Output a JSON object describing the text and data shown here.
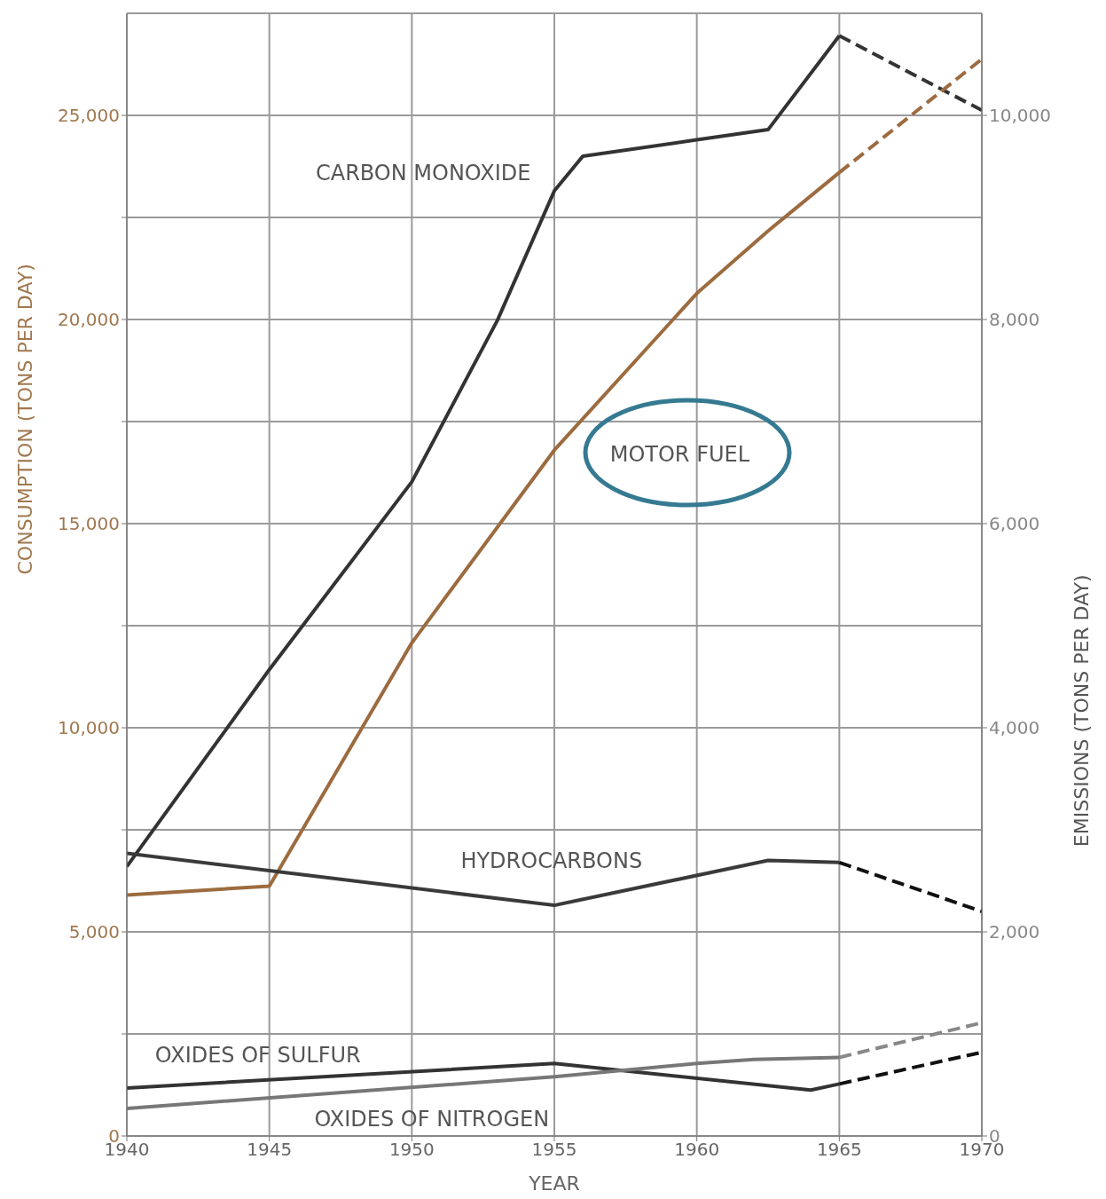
{
  "chart_data": {
    "type": "line",
    "xlabel": "YEAR",
    "ylabel": "CONSUMPTION (TONS PER DAY)",
    "y2label": "EMISSIONS (TONS PER DAY)",
    "xlim": [
      1940,
      1970
    ],
    "xticks": [
      1940,
      1945,
      1950,
      1955,
      1960,
      1965,
      1970
    ],
    "ylim": [
      0,
      27500
    ],
    "yticks": [
      0,
      {
        "value": 2500,
        "label": null
      },
      {
        "value": 5000,
        "label": "5,000"
      },
      {
        "value": 7500,
        "label": null
      },
      {
        "value": 10000,
        "label": "10,000"
      },
      {
        "value": 12500,
        "label": null
      },
      {
        "value": 15000,
        "label": "15,000"
      },
      {
        "value": 17500,
        "label": null
      },
      {
        "value": 20000,
        "label": "20,000"
      },
      {
        "value": 22500,
        "label": null
      },
      {
        "value": 25000,
        "label": "25,000"
      }
    ],
    "y2lim": [
      0,
      11000
    ],
    "y2ticks": [
      0,
      {
        "value": 2000,
        "label": "2,000"
      },
      {
        "value": 4000,
        "label": "4,000"
      },
      {
        "value": 6000,
        "label": "6,000"
      },
      {
        "value": 8000,
        "label": "8,000"
      },
      {
        "value": 10000,
        "label": "10,000"
      }
    ],
    "grid": true,
    "marker": "none",
    "series": [
      {
        "name": "CARBON MONOXIDE",
        "color": "#333333",
        "axis": "y2",
        "x": [
          1940,
          1945,
          1950,
          1953,
          1955,
          1956,
          1960,
          1962.5,
          1965
        ],
        "values": [
          2640,
          4570,
          6410,
          7990,
          9260,
          9600,
          9760,
          9860,
          10780
        ]
      },
      {
        "color": "#333333",
        "axis": "y2",
        "line_style": "dashed",
        "x": [
          1965,
          1970
        ],
        "values": [
          10780,
          10050
        ]
      },
      {
        "name": "MOTOR FUEL",
        "color": "#9c6b3f",
        "x": [
          1940,
          1945,
          1950,
          1955,
          1960,
          1962.5,
          1965
        ],
        "values": [
          5900,
          6120,
          12080,
          16800,
          20640,
          22170,
          23600
        ]
      },
      {
        "color": "#9c6b3f",
        "line_style": "dashed",
        "x": [
          1965,
          1970
        ],
        "values": [
          23600,
          26380
        ]
      },
      {
        "name": "HYDROCARBONS",
        "color": "#3a3a3a",
        "axis": "y2",
        "x": [
          1940,
          1945,
          1955,
          1962.5,
          1965
        ],
        "values": [
          2770,
          2600,
          2260,
          2700,
          2680
        ]
      },
      {
        "color": "#111111",
        "axis": "y2",
        "line_style": "dashed",
        "x": [
          1965,
          1970
        ],
        "values": [
          2680,
          2200
        ]
      },
      {
        "name": "OXIDES OF SULFUR",
        "color": "#333333",
        "axis": "y2",
        "x": [
          1940,
          1955,
          1964,
          1965
        ],
        "values": [
          470,
          710,
          450,
          510
        ]
      },
      {
        "color": "#111111",
        "axis": "y2",
        "line_style": "dashed",
        "x": [
          1965,
          1970
        ],
        "values": [
          510,
          820
        ]
      },
      {
        "name": "OXIDES OF NITROGEN",
        "color": "#777777",
        "axis": "y2",
        "x": [
          1940,
          1955,
          1960,
          1962,
          1965
        ],
        "values": [
          270,
          580,
          710,
          750,
          770
        ]
      },
      {
        "color": "#888888",
        "axis": "y2",
        "line_style": "dashed",
        "x": [
          1965,
          1970
        ],
        "values": [
          770,
          1110
        ]
      }
    ]
  }
}
